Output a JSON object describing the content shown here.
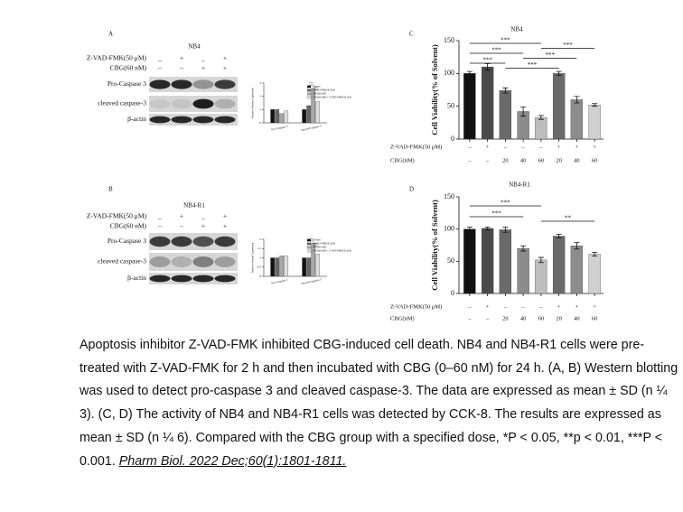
{
  "panels": [
    {
      "letter": "A",
      "title": "NB4",
      "treatments": [
        {
          "label": "Z-VAD-FMK(50 μM)",
          "marks": [
            "_",
            "+",
            "_",
            "+"
          ]
        },
        {
          "label": "CBG(60 nM)",
          "marks": [
            "–",
            "–",
            "+",
            "+"
          ]
        }
      ],
      "bands": [
        "Pro-Caspase 3",
        "cleaved caspase-3",
        "β-actin"
      ]
    },
    {
      "letter": "B",
      "title": "NB4-R1",
      "treatments": [
        {
          "label": "Z-VAD-FMK(50 μM)",
          "marks": [
            "_",
            "+",
            "_",
            "+"
          ]
        },
        {
          "label": "CBG(60 nM)",
          "marks": [
            "–",
            "–",
            "+",
            "+"
          ]
        }
      ],
      "bands": [
        "Pro-Caspase 3",
        "cleaved caspase-3",
        "β-actin"
      ]
    }
  ],
  "chart_data": [
    {
      "type": "bar",
      "panel": "C",
      "title": "NB4",
      "ylabel": "Cell Viability(% of Solvent)",
      "values": [
        100,
        110,
        74,
        42,
        33,
        100,
        60,
        52
      ],
      "errors": [
        3,
        5,
        4,
        7,
        3,
        3,
        5,
        2
      ],
      "colors": [
        "#111111",
        "#4a4a4a",
        "#6a6a6a",
        "#8c8c8c",
        "#bdbdbd",
        "#6a6a6a",
        "#8c8c8c",
        "#d0d0d0"
      ],
      "ylim": [
        0,
        150
      ],
      "yticks": [
        0,
        50,
        100,
        150
      ],
      "rows": [
        {
          "label": "Z-VAD-FMK(50 μM)",
          "marks": [
            "–",
            "+",
            "–",
            "–",
            "–",
            "+",
            "+",
            "+"
          ]
        },
        {
          "label": "CBG(nM)",
          "marks": [
            "–",
            "–",
            "20",
            "40",
            "60",
            "20",
            "40",
            "60"
          ]
        }
      ],
      "annotations": [
        "***",
        "***",
        "***",
        "***",
        "***",
        "***"
      ]
    },
    {
      "type": "bar",
      "panel": "D",
      "title": "NB4-R1",
      "ylabel": "Cell Viability(% of Solvent)",
      "values": [
        100,
        101,
        99,
        70,
        52,
        89,
        74,
        61
      ],
      "errors": [
        3,
        2,
        4,
        4,
        4,
        3,
        5,
        3
      ],
      "colors": [
        "#111111",
        "#4a4a4a",
        "#6a6a6a",
        "#8c8c8c",
        "#bdbdbd",
        "#6a6a6a",
        "#8c8c8c",
        "#d0d0d0"
      ],
      "ylim": [
        0,
        150
      ],
      "yticks": [
        0,
        50,
        100,
        150
      ],
      "rows": [
        {
          "label": "Z-VAD-FMK(50 μM)",
          "marks": [
            "–",
            "+",
            "–",
            "–",
            "–",
            "+",
            "+",
            "+"
          ]
        },
        {
          "label": "CBG(nM)",
          "marks": [
            "–",
            "–",
            "20",
            "40",
            "60",
            "20",
            "40",
            "60"
          ]
        }
      ],
      "annotations": [
        "***",
        "***",
        "**"
      ]
    },
    {
      "type": "grouped_bar",
      "ylabel": "Relative Protein Expression",
      "categories": [
        "Pro-Caspase 3",
        "cleaved caspase-3"
      ],
      "series": [
        {
          "name": "Solvent",
          "color": "#111111",
          "values": [
            1.0,
            1.0
          ]
        },
        {
          "name": "Z-VAD-FMK(50 μM)",
          "color": "#666666",
          "values": [
            1.0,
            1.3
          ]
        },
        {
          "name": "CBG(60 nM)",
          "color": "#a8a8a8",
          "values": [
            0.7,
            2.6
          ]
        },
        {
          "name": "CBG(60 nM) + Z-VAD-FMK(50 μM)",
          "color": "#dddddd",
          "values": [
            0.9,
            1.6
          ]
        }
      ],
      "ylim": [
        0,
        3
      ],
      "yticks": [
        0,
        1,
        2,
        3
      ],
      "annotations": [
        "***",
        "***"
      ]
    },
    {
      "type": "grouped_bar",
      "ylabel": "Relative Protein Expression",
      "categories": [
        "Pro-Caspase 3",
        "cleaved caspase-3"
      ],
      "series": [
        {
          "name": "Solvent",
          "color": "#111111",
          "values": [
            1.0,
            1.0
          ]
        },
        {
          "name": "Z-VAD-FMK(50 μM)",
          "color": "#666666",
          "values": [
            1.0,
            1.0
          ]
        },
        {
          "name": "CBG(60 nM)",
          "color": "#a8a8a8",
          "values": [
            1.1,
            1.8
          ]
        },
        {
          "name": "CBG(60 nM) + Z-VAD-FMK(50 μM)",
          "color": "#dddddd",
          "values": [
            1.1,
            1.2
          ]
        }
      ],
      "ylim": [
        0,
        2
      ],
      "yticks": [
        0,
        0.5,
        1,
        1.5,
        2
      ],
      "annotations": [
        "***",
        "***"
      ]
    }
  ],
  "caption": {
    "text": "Apoptosis inhibitor Z-VAD-FMK inhibited CBG-induced cell death. NB4 and NB4-R1 cells were pre-treated with Z-VAD-FMK for 2 h and then incubated with CBG (0–60 nM) for 24 h. (A, B) Western blotting was used to detect pro-caspase 3 and cleaved caspase-3. The data are expressed as mean ± SD (n ¼ 3). (C, D) The activity of NB4 and NB4-R1 cells was detected by CCK-8. The results are expressed as mean ± SD (n ¼ 6). Compared with the CBG group with a specified dose, *P < 0.05, **p < 0.01, ***P < 0.001.",
    "citation": "Pharm Biol. 2022 Dec;60(1):1801-1811."
  }
}
